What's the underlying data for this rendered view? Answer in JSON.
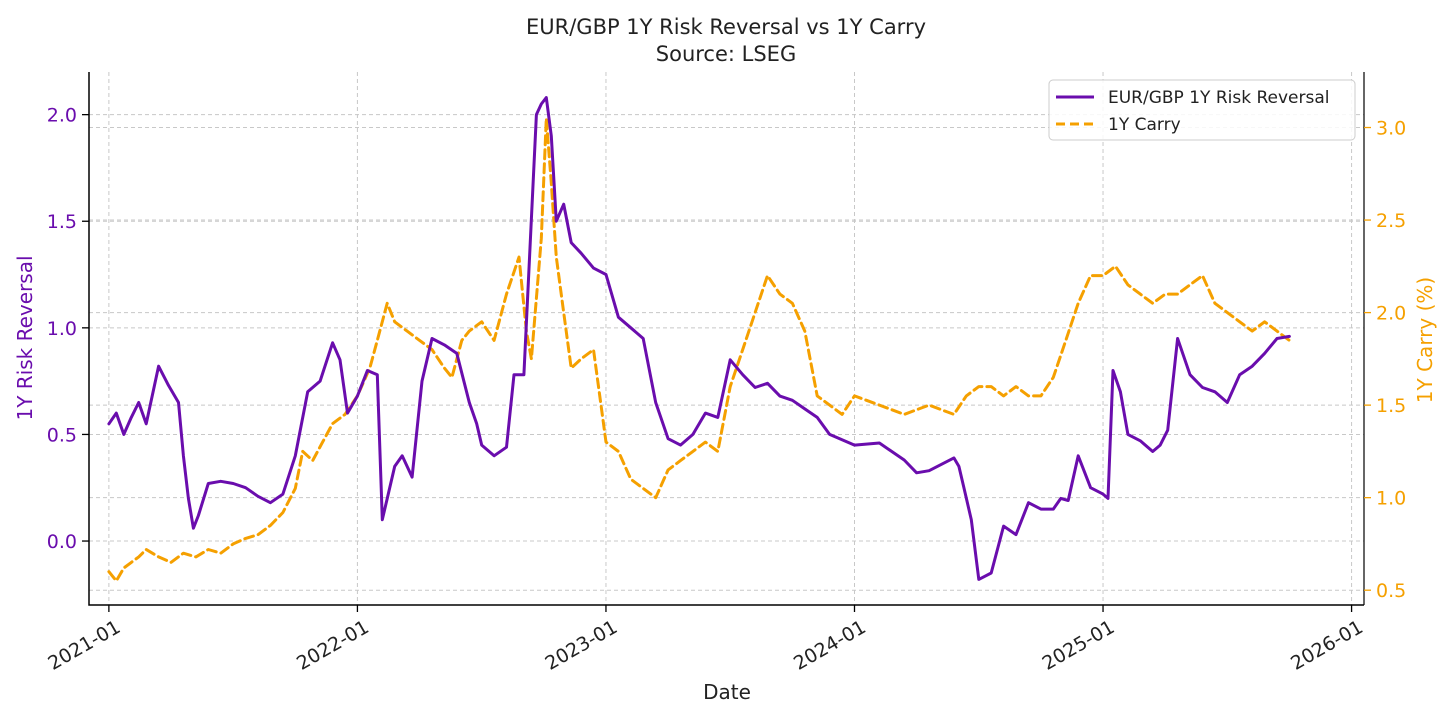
{
  "chart_data": {
    "type": "line",
    "title": "EUR/GBP 1Y Risk Reversal vs 1Y Carry",
    "subtitle": "Source: LSEG",
    "xlabel": "Date",
    "ylabel_left": "1Y Risk Reversal",
    "ylabel_right": "1Y Carry (%)",
    "x_range": [
      2020.92,
      2026.05
    ],
    "ylim_left": [
      -0.3,
      2.2
    ],
    "ylim_right": [
      0.42,
      3.3
    ],
    "x_ticks": [
      {
        "value": 2021.0,
        "label": "2021-01"
      },
      {
        "value": 2022.0,
        "label": "2022-01"
      },
      {
        "value": 2023.0,
        "label": "2023-01"
      },
      {
        "value": 2024.0,
        "label": "2024-01"
      },
      {
        "value": 2025.0,
        "label": "2025-01"
      },
      {
        "value": 2026.0,
        "label": "2026-01"
      }
    ],
    "y_left_ticks": [
      {
        "value": 0.0,
        "label": "0.0"
      },
      {
        "value": 0.5,
        "label": "0.5"
      },
      {
        "value": 1.0,
        "label": "1.0"
      },
      {
        "value": 1.5,
        "label": "1.5"
      },
      {
        "value": 2.0,
        "label": "2.0"
      }
    ],
    "y_right_ticks": [
      {
        "value": 0.5,
        "label": "0.5"
      },
      {
        "value": 1.0,
        "label": "1.0"
      },
      {
        "value": 1.5,
        "label": "1.5"
      },
      {
        "value": 2.0,
        "label": "2.0"
      },
      {
        "value": 2.5,
        "label": "2.5"
      },
      {
        "value": 3.0,
        "label": "3.0"
      }
    ],
    "legend_position": "top-right",
    "series": [
      {
        "name": "EUR/GBP 1Y Risk Reversal",
        "axis": "left",
        "color": "#6a0dad",
        "style": "solid",
        "x": [
          2021.0,
          2021.03,
          2021.06,
          2021.09,
          2021.12,
          2021.15,
          2021.2,
          2021.24,
          2021.28,
          2021.3,
          2021.32,
          2021.34,
          2021.36,
          2021.4,
          2021.45,
          2021.5,
          2021.55,
          2021.6,
          2021.65,
          2021.7,
          2021.75,
          2021.8,
          2021.85,
          2021.9,
          2021.93,
          2021.96,
          2022.0,
          2022.04,
          2022.08,
          2022.1,
          2022.15,
          2022.18,
          2022.22,
          2022.26,
          2022.3,
          2022.35,
          2022.4,
          2022.45,
          2022.48,
          2022.5,
          2022.55,
          2022.6,
          2022.63,
          2022.67,
          2022.72,
          2022.74,
          2022.76,
          2022.78,
          2022.8,
          2022.83,
          2022.86,
          2022.9,
          2022.95,
          2023.0,
          2023.05,
          2023.1,
          2023.15,
          2023.2,
          2023.25,
          2023.3,
          2023.35,
          2023.4,
          2023.45,
          2023.5,
          2023.55,
          2023.6,
          2023.65,
          2023.7,
          2023.75,
          2023.8,
          2023.85,
          2023.9,
          2024.0,
          2024.1,
          2024.15,
          2024.2,
          2024.25,
          2024.3,
          2024.35,
          2024.4,
          2024.42,
          2024.44,
          2024.47,
          2024.5,
          2024.55,
          2024.6,
          2024.65,
          2024.7,
          2024.75,
          2024.8,
          2024.83,
          2024.86,
          2024.9,
          2024.95,
          2025.0,
          2025.02,
          2025.04,
          2025.07,
          2025.1,
          2025.15,
          2025.2,
          2025.23,
          2025.26,
          2025.3,
          2025.35,
          2025.4,
          2025.45,
          2025.5,
          2025.55,
          2025.6,
          2025.65,
          2025.7,
          2025.75
        ],
        "values": [
          0.55,
          0.6,
          0.5,
          0.58,
          0.65,
          0.55,
          0.82,
          0.73,
          0.65,
          0.4,
          0.2,
          0.06,
          0.12,
          0.27,
          0.28,
          0.27,
          0.25,
          0.21,
          0.18,
          0.22,
          0.4,
          0.7,
          0.75,
          0.93,
          0.85,
          0.6,
          0.68,
          0.8,
          0.78,
          0.1,
          0.35,
          0.4,
          0.3,
          0.75,
          0.95,
          0.92,
          0.88,
          0.65,
          0.55,
          0.45,
          0.4,
          0.44,
          0.78,
          0.78,
          2.0,
          2.05,
          2.08,
          1.9,
          1.5,
          1.58,
          1.4,
          1.35,
          1.28,
          1.25,
          1.05,
          1.0,
          0.95,
          0.65,
          0.48,
          0.45,
          0.5,
          0.6,
          0.58,
          0.85,
          0.78,
          0.72,
          0.74,
          0.68,
          0.66,
          0.62,
          0.58,
          0.5,
          0.45,
          0.46,
          0.42,
          0.38,
          0.32,
          0.33,
          0.36,
          0.39,
          0.35,
          0.25,
          0.1,
          -0.18,
          -0.15,
          0.07,
          0.03,
          0.18,
          0.15,
          0.15,
          0.2,
          0.19,
          0.4,
          0.25,
          0.22,
          0.2,
          0.8,
          0.7,
          0.5,
          0.47,
          0.42,
          0.45,
          0.52,
          0.95,
          0.78,
          0.72,
          0.7,
          0.65,
          0.78,
          0.82,
          0.88,
          0.95,
          0.96
        ]
      },
      {
        "name": "1Y Carry",
        "axis": "right",
        "color": "#f5a000",
        "style": "dashed",
        "x": [
          2021.0,
          2021.03,
          2021.06,
          2021.09,
          2021.12,
          2021.15,
          2021.2,
          2021.25,
          2021.3,
          2021.35,
          2021.4,
          2021.45,
          2021.5,
          2021.55,
          2021.6,
          2021.65,
          2021.7,
          2021.75,
          2021.78,
          2021.82,
          2021.86,
          2021.9,
          2021.95,
          2022.0,
          2022.05,
          2022.08,
          2022.12,
          2022.15,
          2022.2,
          2022.25,
          2022.3,
          2022.35,
          2022.38,
          2022.42,
          2022.45,
          2022.5,
          2022.55,
          2022.6,
          2022.65,
          2022.68,
          2022.7,
          2022.74,
          2022.76,
          2022.78,
          2022.8,
          2022.83,
          2022.86,
          2022.9,
          2022.95,
          2023.0,
          2023.05,
          2023.1,
          2023.15,
          2023.2,
          2023.25,
          2023.3,
          2023.35,
          2023.4,
          2023.45,
          2023.5,
          2023.55,
          2023.6,
          2023.65,
          2023.7,
          2023.75,
          2023.8,
          2023.85,
          2023.9,
          2023.95,
          2024.0,
          2024.1,
          2024.2,
          2024.3,
          2024.4,
          2024.45,
          2024.5,
          2024.55,
          2024.6,
          2024.65,
          2024.7,
          2024.75,
          2024.8,
          2024.85,
          2024.9,
          2024.95,
          2025.0,
          2025.05,
          2025.1,
          2025.15,
          2025.2,
          2025.25,
          2025.3,
          2025.35,
          2025.4,
          2025.45,
          2025.5,
          2025.55,
          2025.6,
          2025.65,
          2025.7,
          2025.75
        ],
        "values": [
          0.6,
          0.55,
          0.62,
          0.65,
          0.68,
          0.72,
          0.68,
          0.65,
          0.7,
          0.68,
          0.72,
          0.7,
          0.75,
          0.78,
          0.8,
          0.85,
          0.92,
          1.05,
          1.25,
          1.2,
          1.3,
          1.4,
          1.45,
          1.55,
          1.7,
          1.85,
          2.05,
          1.95,
          1.9,
          1.85,
          1.8,
          1.7,
          1.65,
          1.85,
          1.9,
          1.95,
          1.85,
          2.1,
          2.3,
          1.9,
          1.75,
          2.4,
          3.05,
          2.7,
          2.3,
          2.0,
          1.7,
          1.75,
          1.8,
          1.3,
          1.25,
          1.1,
          1.05,
          1.0,
          1.15,
          1.2,
          1.25,
          1.3,
          1.25,
          1.6,
          1.8,
          2.0,
          2.2,
          2.1,
          2.05,
          1.9,
          1.55,
          1.5,
          1.45,
          1.55,
          1.5,
          1.45,
          1.5,
          1.45,
          1.55,
          1.6,
          1.6,
          1.55,
          1.6,
          1.55,
          1.55,
          1.65,
          1.85,
          2.05,
          2.2,
          2.2,
          2.25,
          2.15,
          2.1,
          2.05,
          2.1,
          2.1,
          2.15,
          2.2,
          2.05,
          2.0,
          1.95,
          1.9,
          1.95,
          1.9,
          1.85
        ]
      }
    ]
  }
}
